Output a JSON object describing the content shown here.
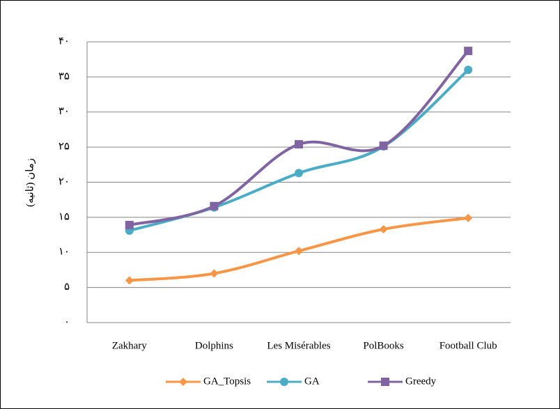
{
  "chart_data": {
    "type": "line",
    "y_label": "زمان (ثانیه)",
    "categories": [
      "Zakhary",
      "Dolphins",
      "Les Misérables",
      "PolBooks",
      "Football Club"
    ],
    "series": [
      {
        "name": "GA_Topsis",
        "color": "#f79646",
        "marker": "diamond",
        "values": [
          6,
          7,
          10.2,
          13.3,
          14.9
        ]
      },
      {
        "name": "GA",
        "color": "#4bacc6",
        "marker": "circle",
        "values": [
          13.1,
          16.4,
          21.3,
          25.1,
          36
        ]
      },
      {
        "name": "Greedy",
        "color": "#8064a2",
        "marker": "square",
        "values": [
          13.9,
          16.6,
          25.4,
          25.2,
          38.7
        ]
      }
    ],
    "ylim": [
      0,
      40
    ],
    "yticks": [
      {
        "value": 0,
        "label": "۰"
      },
      {
        "value": 5,
        "label": "۵"
      },
      {
        "value": 10,
        "label": "۱۰"
      },
      {
        "value": 15,
        "label": "۱۵"
      },
      {
        "value": 20,
        "label": "۲۰"
      },
      {
        "value": 25,
        "label": "۲۵"
      },
      {
        "value": 30,
        "label": "۳۰"
      },
      {
        "value": 35,
        "label": "۳۵"
      },
      {
        "value": 40,
        "label": "۴۰"
      }
    ],
    "grid": true,
    "legend": "bottom"
  }
}
